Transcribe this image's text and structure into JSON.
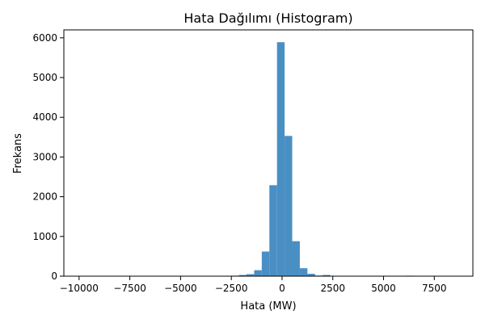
{
  "chart_data": {
    "type": "bar",
    "title": "Hata Dağılımı (Histogram)",
    "xlabel": "Hata (MW)",
    "ylabel": "Frekans",
    "xlim": [
      -10750,
      9400
    ],
    "ylim": [
      0,
      6200
    ],
    "xticks": [
      -10000,
      -7500,
      -5000,
      -2500,
      0,
      2500,
      5000,
      7500
    ],
    "xtick_labels": [
      "−10000",
      "−7500",
      "−5000",
      "−2500",
      "0",
      "2500",
      "5000",
      "7500"
    ],
    "yticks": [
      0,
      1000,
      2000,
      3000,
      4000,
      5000,
      6000
    ],
    "ytick_labels": [
      "0",
      "1000",
      "2000",
      "3000",
      "4000",
      "5000",
      "6000"
    ],
    "bar_color": "#4a8fc4",
    "grid": false,
    "bins": [
      {
        "x0": -10000,
        "x1": -9625,
        "count": 2
      },
      {
        "x0": -9625,
        "x1": -9250,
        "count": 0
      },
      {
        "x0": -9250,
        "x1": -8875,
        "count": 0
      },
      {
        "x0": -8875,
        "x1": -8500,
        "count": 0
      },
      {
        "x0": -8500,
        "x1": -8125,
        "count": 0
      },
      {
        "x0": -8125,
        "x1": -7750,
        "count": 0
      },
      {
        "x0": -7750,
        "x1": -7375,
        "count": 0
      },
      {
        "x0": -7375,
        "x1": -7000,
        "count": 0
      },
      {
        "x0": -7000,
        "x1": -6625,
        "count": 0
      },
      {
        "x0": -6625,
        "x1": -6250,
        "count": 0
      },
      {
        "x0": -6250,
        "x1": -5875,
        "count": 0
      },
      {
        "x0": -5875,
        "x1": -5500,
        "count": 0
      },
      {
        "x0": -5500,
        "x1": -5125,
        "count": 0
      },
      {
        "x0": -5125,
        "x1": -4750,
        "count": 0
      },
      {
        "x0": -4750,
        "x1": -4375,
        "count": 0
      },
      {
        "x0": -4375,
        "x1": -4000,
        "count": 10
      },
      {
        "x0": -4000,
        "x1": -3625,
        "count": 0
      },
      {
        "x0": -3625,
        "x1": -3250,
        "count": 5
      },
      {
        "x0": -3250,
        "x1": -2875,
        "count": 8
      },
      {
        "x0": -2875,
        "x1": -2500,
        "count": 10
      },
      {
        "x0": -2500,
        "x1": -2125,
        "count": 12
      },
      {
        "x0": -2125,
        "x1": -1750,
        "count": 30
      },
      {
        "x0": -1750,
        "x1": -1375,
        "count": 50
      },
      {
        "x0": -1375,
        "x1": -1000,
        "count": 150
      },
      {
        "x0": -1000,
        "x1": -625,
        "count": 620
      },
      {
        "x0": -625,
        "x1": -250,
        "count": 2290
      },
      {
        "x0": -250,
        "x1": 125,
        "count": 5890
      },
      {
        "x0": 125,
        "x1": 500,
        "count": 3530
      },
      {
        "x0": 500,
        "x1": 875,
        "count": 880
      },
      {
        "x0": 875,
        "x1": 1250,
        "count": 200
      },
      {
        "x0": 1250,
        "x1": 1625,
        "count": 60
      },
      {
        "x0": 1625,
        "x1": 2000,
        "count": 15
      },
      {
        "x0": 2000,
        "x1": 2375,
        "count": 30
      },
      {
        "x0": 2375,
        "x1": 2750,
        "count": 10
      },
      {
        "x0": 2750,
        "x1": 3125,
        "count": 8
      },
      {
        "x0": 3125,
        "x1": 3500,
        "count": 5
      },
      {
        "x0": 3500,
        "x1": 3875,
        "count": 5
      },
      {
        "x0": 3875,
        "x1": 4250,
        "count": 0
      },
      {
        "x0": 4250,
        "x1": 4625,
        "count": 0
      },
      {
        "x0": 4625,
        "x1": 5000,
        "count": 0
      },
      {
        "x0": 5000,
        "x1": 5375,
        "count": 0
      },
      {
        "x0": 5375,
        "x1": 5750,
        "count": 0
      },
      {
        "x0": 5750,
        "x1": 6125,
        "count": 0
      },
      {
        "x0": 6125,
        "x1": 6500,
        "count": 12
      },
      {
        "x0": 6500,
        "x1": 6875,
        "count": 5
      },
      {
        "x0": 6875,
        "x1": 7250,
        "count": 0
      },
      {
        "x0": 7250,
        "x1": 7625,
        "count": 0
      },
      {
        "x0": 7625,
        "x1": 8000,
        "count": 0
      },
      {
        "x0": 8000,
        "x1": 8375,
        "count": 0
      },
      {
        "x0": 8375,
        "x1": 8750,
        "count": 0
      }
    ]
  }
}
